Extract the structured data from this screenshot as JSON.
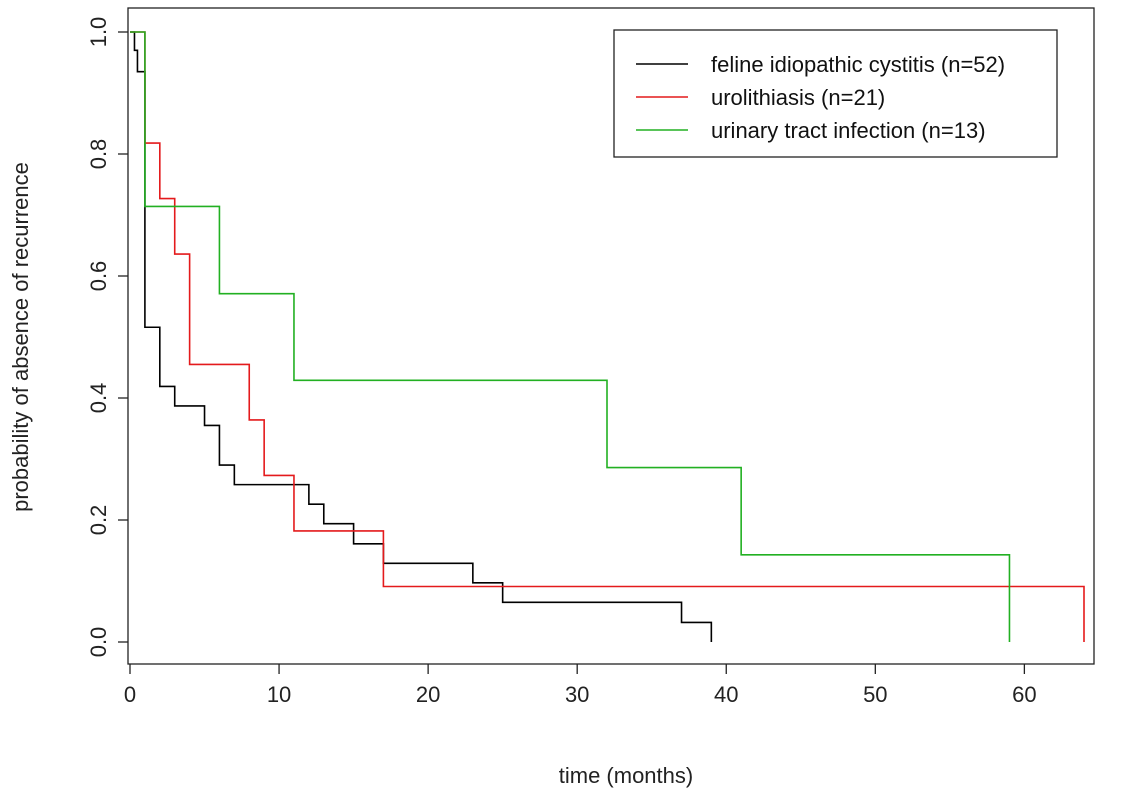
{
  "chart_data": {
    "type": "line",
    "subtype": "step (Kaplan-Meier)",
    "title": "",
    "xlabel": "time (months)",
    "ylabel": "probability of absence of recurrence",
    "xlim": [
      0,
      64
    ],
    "ylim": [
      0,
      1
    ],
    "xticks": [
      0,
      10,
      20,
      30,
      40,
      50,
      60
    ],
    "yticks": [
      0.0,
      0.2,
      0.4,
      0.6,
      0.8,
      1.0
    ],
    "xtick_labels": [
      "0",
      "10",
      "20",
      "30",
      "40",
      "50",
      "60"
    ],
    "ytick_labels": [
      "0.0",
      "0.2",
      "0.4",
      "0.6",
      "0.8",
      "1.0"
    ],
    "grid": false,
    "legend_position": "top-right",
    "series": [
      {
        "name": "feline idiopathic cystitis (n=52)",
        "color": "#000000",
        "x": [
          0,
          0.3,
          0.5,
          1,
          2,
          3,
          5,
          6,
          7,
          11,
          12,
          13,
          15,
          17,
          23,
          25,
          37,
          39
        ],
        "y": [
          1.0,
          0.97,
          0.935,
          0.516,
          0.419,
          0.387,
          0.355,
          0.29,
          0.258,
          0.258,
          0.226,
          0.194,
          0.161,
          0.129,
          0.097,
          0.065,
          0.032,
          0.0
        ]
      },
      {
        "name": "urolithiasis (n=21)",
        "color": "#e41a1c",
        "x": [
          0,
          1,
          2,
          3,
          4,
          8,
          9,
          11,
          17,
          64
        ],
        "y": [
          1.0,
          0.818,
          0.727,
          0.636,
          0.455,
          0.364,
          0.273,
          0.182,
          0.091,
          0.0
        ]
      },
      {
        "name": "urinary tract infection (n=13)",
        "color": "#22b022",
        "x": [
          0,
          1,
          6,
          11,
          32,
          41,
          59
        ],
        "y": [
          1.0,
          0.714,
          0.571,
          0.429,
          0.286,
          0.143,
          0.0
        ]
      }
    ]
  }
}
